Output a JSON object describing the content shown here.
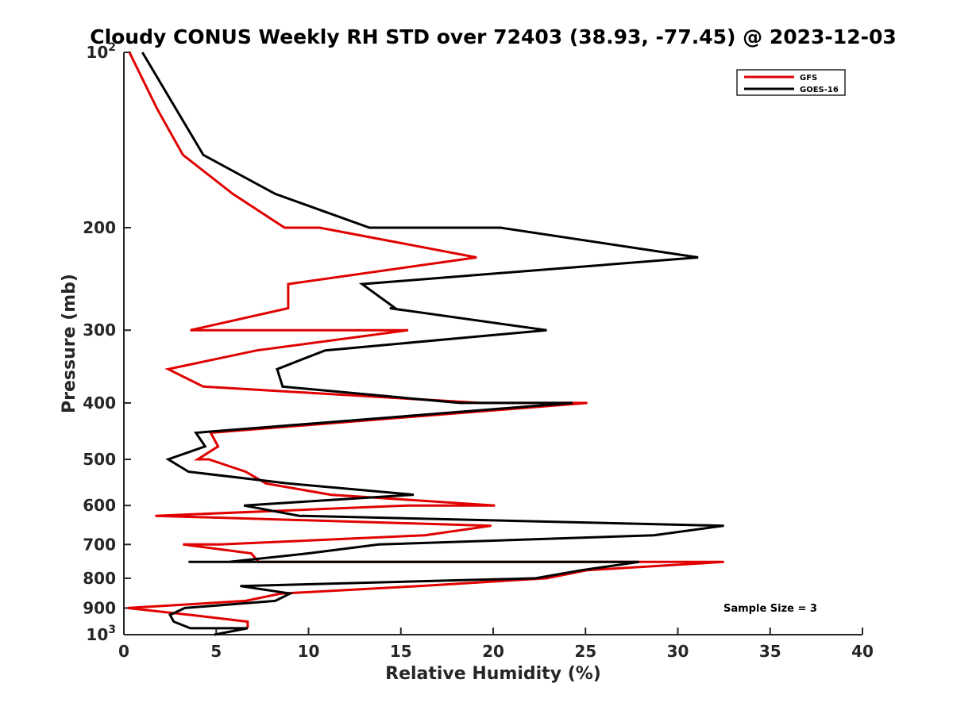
{
  "chart_data": {
    "type": "line",
    "title": "Cloudy CONUS Weekly RH STD over 72403 (38.93, -77.45) @ 2023-12-03",
    "xlabel": "Relative Humidity (%)",
    "ylabel": "Pressure (mb)",
    "xlim": [
      0,
      40
    ],
    "ylim": [
      100,
      1000
    ],
    "y_scale": "log",
    "y_reversed": true,
    "grid": false,
    "legend_position": "top-right",
    "x_ticks": [
      "0",
      "5",
      "10",
      "15",
      "20",
      "25",
      "30",
      "35",
      "40"
    ],
    "y_ticks": [
      {
        "value": 100,
        "base": "10",
        "exp": "2"
      },
      {
        "value": 200,
        "label": "200"
      },
      {
        "value": 300,
        "label": "300"
      },
      {
        "value": 400,
        "label": "400"
      },
      {
        "value": 500,
        "label": "500"
      },
      {
        "value": 600,
        "label": "600"
      },
      {
        "value": 700,
        "label": "700"
      },
      {
        "value": 800,
        "label": "800"
      },
      {
        "value": 900,
        "label": "900"
      },
      {
        "value": 1000,
        "base": "10",
        "exp": "3"
      }
    ],
    "annotation": "Sample Size = 3",
    "series": [
      {
        "name": "GFS",
        "color": "#e00000",
        "points": [
          [
            0.3,
            100
          ],
          [
            1.8,
            125
          ],
          [
            3.2,
            150
          ],
          [
            5.9,
            175
          ],
          [
            8.7,
            200
          ],
          [
            10.6,
            200
          ],
          [
            19.1,
            225
          ],
          [
            8.9,
            250
          ],
          [
            8.9,
            275
          ],
          [
            3.6,
            300
          ],
          [
            15.4,
            300
          ],
          [
            7.2,
            325
          ],
          [
            2.4,
            350
          ],
          [
            4.3,
            375
          ],
          [
            19.3,
            400
          ],
          [
            25.1,
            400
          ],
          [
            4.7,
            450
          ],
          [
            5.1,
            475
          ],
          [
            4.0,
            500
          ],
          [
            4.6,
            500
          ],
          [
            6.6,
            525
          ],
          [
            7.7,
            550
          ],
          [
            11.2,
            575
          ],
          [
            20.1,
            600
          ],
          [
            15.4,
            600
          ],
          [
            1.7,
            625
          ],
          [
            19.9,
            650
          ],
          [
            16.3,
            675
          ],
          [
            5.2,
            700
          ],
          [
            3.2,
            700
          ],
          [
            6.9,
            725
          ],
          [
            7.3,
            750
          ],
          [
            32.5,
            750
          ],
          [
            25.1,
            775
          ],
          [
            22.9,
            800
          ],
          [
            16.0,
            825
          ],
          [
            8.5,
            850
          ],
          [
            6.6,
            875
          ],
          [
            0.2,
            900
          ],
          [
            3.6,
            925
          ],
          [
            6.7,
            950
          ],
          [
            6.7,
            975
          ]
        ]
      },
      {
        "name": "GOES-16",
        "color": "#000000",
        "points": [
          [
            1.0,
            100
          ],
          [
            4.3,
            150
          ],
          [
            8.2,
            175
          ],
          [
            13.3,
            200
          ],
          [
            20.4,
            200
          ],
          [
            31.1,
            225
          ],
          [
            12.9,
            250
          ],
          [
            14.7,
            275
          ],
          [
            14.4,
            275
          ],
          [
            22.9,
            300
          ],
          [
            10.9,
            325
          ],
          [
            8.3,
            350
          ],
          [
            8.6,
            375
          ],
          [
            18.2,
            400
          ],
          [
            24.3,
            400
          ],
          [
            3.9,
            450
          ],
          [
            4.4,
            475
          ],
          [
            2.4,
            500
          ],
          [
            3.5,
            525
          ],
          [
            8.9,
            550
          ],
          [
            15.7,
            575
          ],
          [
            6.5,
            600
          ],
          [
            9.5,
            625
          ],
          [
            32.5,
            650
          ],
          [
            28.7,
            675
          ],
          [
            13.8,
            700
          ],
          [
            10.0,
            725
          ],
          [
            5.7,
            750
          ],
          [
            3.5,
            750
          ],
          [
            27.9,
            750
          ],
          [
            24.8,
            775
          ],
          [
            22.3,
            800
          ],
          [
            6.3,
            825
          ],
          [
            9.0,
            850
          ],
          [
            8.2,
            875
          ],
          [
            3.3,
            900
          ],
          [
            2.5,
            925
          ],
          [
            2.7,
            950
          ],
          [
            3.6,
            975
          ],
          [
            6.7,
            975
          ],
          [
            4.9,
            1000
          ]
        ]
      }
    ]
  }
}
